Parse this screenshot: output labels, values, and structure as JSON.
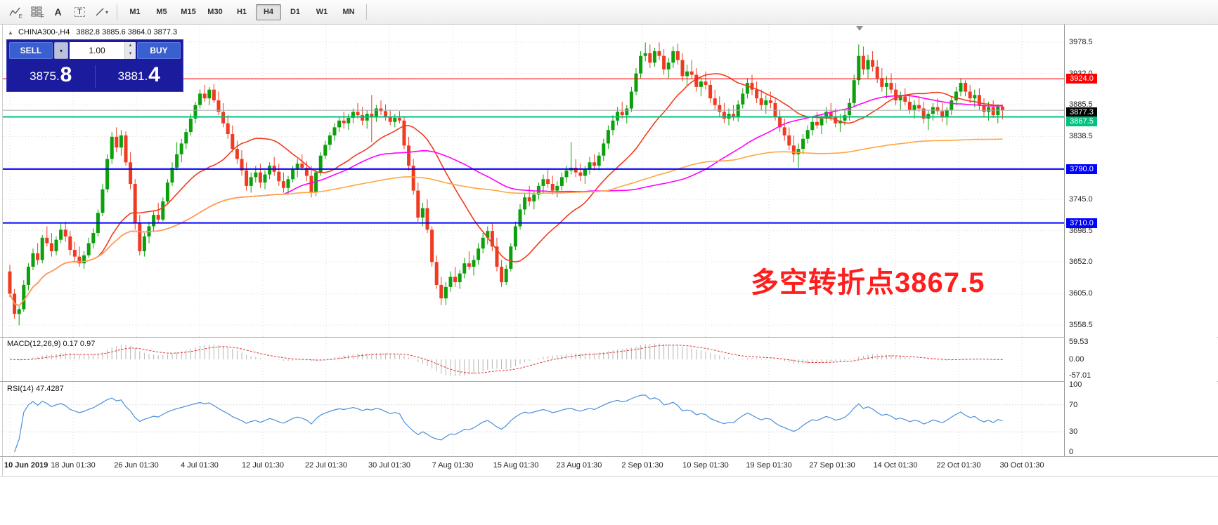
{
  "toolbar": {
    "icons": [
      {
        "name": "zigzag-tool",
        "badge": "E"
      },
      {
        "name": "grid-tool",
        "badge": "F"
      },
      {
        "name": "text-tool",
        "glyph": "A"
      },
      {
        "name": "label-tool",
        "glyph": "T"
      },
      {
        "name": "cursor-tool",
        "glyph": ""
      }
    ],
    "timeframes": [
      "M1",
      "M5",
      "M15",
      "M30",
      "H1",
      "H4",
      "D1",
      "W1",
      "MN"
    ],
    "active_timeframe": "H4"
  },
  "trade_panel": {
    "sell_label": "SELL",
    "buy_label": "BUY",
    "volume": "1.00",
    "sell_price_main": "3875.",
    "sell_price_big": "8",
    "buy_price_main": "3881.",
    "buy_price_big": "4"
  },
  "chart": {
    "symbol_header": "CHINA300-,H4",
    "ohlc_text": "3882.8 3885.6 3864.0 3877.3",
    "annotation": {
      "text": "多空转折点3867.5",
      "color": "#ff1e1e"
    },
    "axis_labels": [
      "3978.5",
      "3932.0",
      "3885.5",
      "3838.5",
      "3745.0",
      "3698.5",
      "3652.0",
      "3605.0",
      "3558.5"
    ],
    "price_lines": [
      {
        "value": 3924.0,
        "label": "3924.0",
        "color": "#ff0000",
        "width": 1.2,
        "nudge": 0
      },
      {
        "value": 3877.3,
        "label": "3877.3",
        "color": "#000000",
        "line_color": "#a8a8a8",
        "width": 1,
        "nudge": 3,
        "current": true
      },
      {
        "value": 3867.5,
        "label": "3867.5",
        "color": "#00c281",
        "width": 2,
        "nudge": 6
      },
      {
        "value": 3790.0,
        "label": "3790.0",
        "color": "#0000ff",
        "width": 2,
        "nudge": 0
      },
      {
        "value": 3710.0,
        "label": "3710.0",
        "color": "#0000ff",
        "width": 2,
        "nudge": 0
      }
    ],
    "time_labels": [
      "10 Jun 2019",
      "18 Jun 01:30",
      "26 Jun 01:30",
      "4 Jul 01:30",
      "12 Jul 01:30",
      "22 Jul 01:30",
      "30 Jul 01:30",
      "7 Aug 01:30",
      "15 Aug 01:30",
      "23 Aug 01:30",
      "2 Sep 01:30",
      "10 Sep 01:30",
      "19 Sep 01:30",
      "27 Sep 01:30",
      "14 Oct 01:30",
      "22 Oct 01:30",
      "30 Oct 01:30"
    ]
  },
  "macd": {
    "label": "MACD(12,26,9) 0.17 0.97",
    "fast": 12,
    "slow": 26,
    "signal_period": 9,
    "values": {
      "main": 0.17,
      "signal": 0.97
    },
    "axis": [
      "59.53",
      "0.00",
      "-57.01"
    ]
  },
  "rsi": {
    "label": "RSI(14) 47.4287",
    "period": 14,
    "value": 47.4287,
    "levels": [
      70,
      30
    ],
    "axis": [
      "100",
      "70",
      "30",
      "0"
    ]
  },
  "colors": {
    "candle_up": "#0ca00c",
    "candle_down": "#ee3b22",
    "grid": "#dcdcdc",
    "macd_hist": "#b4b4b4",
    "macd_signal": "#e03030",
    "rsi_line": "#4a8fdc",
    "panel_bg": "#1b1b9e",
    "panel_button": "#3a5fd0"
  },
  "chart_data": {
    "type": "candlestick",
    "symbol": "CHINA300-",
    "timeframe": "H4",
    "last_ohlc": {
      "open": 3882.8,
      "high": 3885.6,
      "low": 3864.0,
      "close": 3877.3
    },
    "y_gridlines": [
      3978.5,
      3932.0,
      3885.5,
      3838.5,
      3792.0,
      3745.0,
      3698.5,
      3652.0,
      3605.0,
      3558.5
    ],
    "x_labels": [
      "10 Jun 2019",
      "18 Jun 01:30",
      "26 Jun 01:30",
      "4 Jul 01:30",
      "12 Jul 01:30",
      "22 Jul 01:30",
      "30 Jul 01:30",
      "7 Aug 01:30",
      "15 Aug 01:30",
      "23 Aug 01:30",
      "2 Sep 01:30",
      "10 Sep 01:30",
      "19 Sep 01:30",
      "27 Sep 01:30",
      "14 Oct 01:30",
      "22 Oct 01:30",
      "30 Oct 01:30"
    ],
    "horizontal_lines": [
      {
        "value": 3924.0,
        "color": "#ff0000"
      },
      {
        "value": 3867.5,
        "color": "#00c281"
      },
      {
        "value": 3790.0,
        "color": "#0000ff"
      },
      {
        "value": 3710.0,
        "color": "#0000ff"
      }
    ],
    "current_price": 3877.3,
    "overlays": [
      {
        "name": "ma-fast",
        "period": 20,
        "color": "#f03c1e"
      },
      {
        "name": "ma-mid",
        "period": 60,
        "color": "#ff00ff"
      },
      {
        "name": "ma-slow",
        "period": 130,
        "color": "#ffa640"
      }
    ],
    "candles": [
      [
        3638,
        3648,
        3600,
        3605
      ],
      [
        3605,
        3612,
        3568,
        3575
      ],
      [
        3575,
        3586,
        3558,
        3582
      ],
      [
        3582,
        3625,
        3578,
        3618
      ],
      [
        3618,
        3650,
        3610,
        3645
      ],
      [
        3645,
        3672,
        3640,
        3665
      ],
      [
        3665,
        3680,
        3648,
        3655
      ],
      [
        3655,
        3692,
        3650,
        3688
      ],
      [
        3688,
        3705,
        3675,
        3680
      ],
      [
        3680,
        3695,
        3660,
        3668
      ],
      [
        3668,
        3690,
        3662,
        3685
      ],
      [
        3685,
        3710,
        3680,
        3700
      ],
      [
        3700,
        3712,
        3682,
        3690
      ],
      [
        3690,
        3698,
        3662,
        3670
      ],
      [
        3670,
        3682,
        3652,
        3660
      ],
      [
        3660,
        3675,
        3645,
        3650
      ],
      [
        3650,
        3668,
        3642,
        3662
      ],
      [
        3662,
        3688,
        3658,
        3680
      ],
      [
        3680,
        3702,
        3672,
        3695
      ],
      [
        3695,
        3730,
        3690,
        3725
      ],
      [
        3725,
        3768,
        3720,
        3760
      ],
      [
        3760,
        3812,
        3755,
        3805
      ],
      [
        3805,
        3845,
        3798,
        3838
      ],
      [
        3838,
        3852,
        3815,
        3822
      ],
      [
        3822,
        3848,
        3810,
        3840
      ],
      [
        3840,
        3846,
        3795,
        3800
      ],
      [
        3800,
        3815,
        3760,
        3768
      ],
      [
        3768,
        3775,
        3700,
        3710
      ],
      [
        3710,
        3722,
        3662,
        3668
      ],
      [
        3668,
        3695,
        3660,
        3690
      ],
      [
        3690,
        3712,
        3680,
        3705
      ],
      [
        3705,
        3728,
        3698,
        3722
      ],
      [
        3722,
        3740,
        3710,
        3715
      ],
      [
        3715,
        3748,
        3712,
        3742
      ],
      [
        3742,
        3775,
        3738,
        3770
      ],
      [
        3770,
        3800,
        3765,
        3792
      ],
      [
        3792,
        3830,
        3788,
        3812
      ],
      [
        3812,
        3835,
        3800,
        3828
      ],
      [
        3828,
        3850,
        3820,
        3845
      ],
      [
        3845,
        3872,
        3840,
        3865
      ],
      [
        3865,
        3890,
        3858,
        3885
      ],
      [
        3885,
        3908,
        3880,
        3902
      ],
      [
        3902,
        3915,
        3890,
        3895
      ],
      [
        3895,
        3912,
        3885,
        3908
      ],
      [
        3908,
        3916,
        3888,
        3892
      ],
      [
        3892,
        3905,
        3870,
        3875
      ],
      [
        3875,
        3888,
        3852,
        3858
      ],
      [
        3858,
        3870,
        3835,
        3842
      ],
      [
        3842,
        3855,
        3815,
        3820
      ],
      [
        3820,
        3832,
        3798,
        3805
      ],
      [
        3805,
        3818,
        3780,
        3788
      ],
      [
        3788,
        3800,
        3758,
        3765
      ],
      [
        3765,
        3785,
        3755,
        3778
      ],
      [
        3778,
        3795,
        3770,
        3785
      ],
      [
        3785,
        3798,
        3762,
        3770
      ],
      [
        3770,
        3788,
        3760,
        3782
      ],
      [
        3782,
        3800,
        3775,
        3795
      ],
      [
        3795,
        3808,
        3780,
        3786
      ],
      [
        3786,
        3798,
        3765,
        3772
      ],
      [
        3772,
        3785,
        3755,
        3762
      ],
      [
        3762,
        3780,
        3752,
        3775
      ],
      [
        3775,
        3795,
        3770,
        3790
      ],
      [
        3790,
        3805,
        3778,
        3798
      ],
      [
        3798,
        3812,
        3788,
        3792
      ],
      [
        3792,
        3802,
        3772,
        3780
      ],
      [
        3780,
        3795,
        3748,
        3755
      ],
      [
        3755,
        3790,
        3750,
        3785
      ],
      [
        3785,
        3815,
        3780,
        3810
      ],
      [
        3810,
        3832,
        3805,
        3826
      ],
      [
        3826,
        3845,
        3818,
        3840
      ],
      [
        3840,
        3858,
        3832,
        3852
      ],
      [
        3852,
        3868,
        3845,
        3862
      ],
      [
        3862,
        3875,
        3850,
        3858
      ],
      [
        3858,
        3872,
        3848,
        3866
      ],
      [
        3866,
        3880,
        3858,
        3875
      ],
      [
        3875,
        3888,
        3865,
        3870
      ],
      [
        3870,
        3882,
        3855,
        3862
      ],
      [
        3862,
        3878,
        3850,
        3872
      ],
      [
        3872,
        3900,
        3830,
        3868
      ],
      [
        3868,
        3885,
        3860,
        3880
      ],
      [
        3880,
        3892,
        3870,
        3876
      ],
      [
        3876,
        3886,
        3862,
        3868
      ],
      [
        3868,
        3878,
        3855,
        3860
      ],
      [
        3860,
        3872,
        3852,
        3866
      ],
      [
        3866,
        3876,
        3858,
        3862
      ],
      [
        3862,
        3868,
        3820,
        3825
      ],
      [
        3825,
        3838,
        3788,
        3795
      ],
      [
        3795,
        3805,
        3752,
        3758
      ],
      [
        3758,
        3770,
        3712,
        3718
      ],
      [
        3718,
        3740,
        3705,
        3732
      ],
      [
        3732,
        3745,
        3695,
        3700
      ],
      [
        3700,
        3705,
        3645,
        3652
      ],
      [
        3652,
        3662,
        3612,
        3618
      ],
      [
        3618,
        3630,
        3588,
        3598
      ],
      [
        3598,
        3622,
        3588,
        3615
      ],
      [
        3615,
        3638,
        3608,
        3630
      ],
      [
        3630,
        3645,
        3615,
        3622
      ],
      [
        3622,
        3640,
        3612,
        3635
      ],
      [
        3635,
        3658,
        3628,
        3650
      ],
      [
        3650,
        3668,
        3640,
        3645
      ],
      [
        3645,
        3662,
        3632,
        3655
      ],
      [
        3655,
        3680,
        3648,
        3672
      ],
      [
        3672,
        3695,
        3665,
        3688
      ],
      [
        3688,
        3705,
        3678,
        3698
      ],
      [
        3698,
        3710,
        3668,
        3675
      ],
      [
        3675,
        3688,
        3638,
        3645
      ],
      [
        3645,
        3655,
        3615,
        3622
      ],
      [
        3622,
        3648,
        3618,
        3642
      ],
      [
        3642,
        3680,
        3638,
        3675
      ],
      [
        3675,
        3712,
        3670,
        3705
      ],
      [
        3705,
        3738,
        3700,
        3730
      ],
      [
        3730,
        3755,
        3722,
        3748
      ],
      [
        3748,
        3765,
        3735,
        3742
      ],
      [
        3742,
        3758,
        3730,
        3752
      ],
      [
        3752,
        3770,
        3745,
        3765
      ],
      [
        3765,
        3782,
        3755,
        3775
      ],
      [
        3775,
        3790,
        3762,
        3768
      ],
      [
        3768,
        3780,
        3752,
        3758
      ],
      [
        3758,
        3772,
        3748,
        3765
      ],
      [
        3765,
        3785,
        3758,
        3778
      ],
      [
        3778,
        3795,
        3770,
        3788
      ],
      [
        3788,
        3830,
        3782,
        3792
      ],
      [
        3792,
        3805,
        3778,
        3785
      ],
      [
        3785,
        3798,
        3772,
        3780
      ],
      [
        3780,
        3795,
        3768,
        3790
      ],
      [
        3790,
        3808,
        3782,
        3800
      ],
      [
        3800,
        3812,
        3788,
        3795
      ],
      [
        3795,
        3815,
        3788,
        3810
      ],
      [
        3810,
        3835,
        3802,
        3828
      ],
      [
        3828,
        3855,
        3820,
        3848
      ],
      [
        3848,
        3870,
        3840,
        3862
      ],
      [
        3862,
        3882,
        3855,
        3875
      ],
      [
        3875,
        3890,
        3865,
        3870
      ],
      [
        3870,
        3885,
        3858,
        3880
      ],
      [
        3880,
        3912,
        3875,
        3905
      ],
      [
        3905,
        3940,
        3900,
        3932
      ],
      [
        3932,
        3965,
        3925,
        3958
      ],
      [
        3958,
        3978,
        3950,
        3962
      ],
      [
        3962,
        3975,
        3940,
        3948
      ],
      [
        3948,
        3970,
        3942,
        3965
      ],
      [
        3965,
        3978,
        3952,
        3958
      ],
      [
        3958,
        3968,
        3930,
        3938
      ],
      [
        3938,
        3955,
        3925,
        3948
      ],
      [
        3948,
        3972,
        3940,
        3965
      ],
      [
        3965,
        3976,
        3945,
        3952
      ],
      [
        3952,
        3962,
        3920,
        3928
      ],
      [
        3928,
        3945,
        3915,
        3935
      ],
      [
        3935,
        3952,
        3925,
        3930
      ],
      [
        3930,
        3940,
        3905,
        3912
      ],
      [
        3912,
        3928,
        3898,
        3920
      ],
      [
        3920,
        3935,
        3908,
        3915
      ],
      [
        3915,
        3922,
        3888,
        3895
      ],
      [
        3895,
        3908,
        3878,
        3885
      ],
      [
        3885,
        3898,
        3868,
        3875
      ],
      [
        3875,
        3888,
        3858,
        3865
      ],
      [
        3865,
        3880,
        3855,
        3872
      ],
      [
        3872,
        3885,
        3862,
        3868
      ],
      [
        3868,
        3892,
        3860,
        3886
      ],
      [
        3886,
        3910,
        3880,
        3902
      ],
      [
        3902,
        3925,
        3895,
        3918
      ],
      [
        3918,
        3930,
        3900,
        3908
      ],
      [
        3908,
        3920,
        3888,
        3895
      ],
      [
        3895,
        3908,
        3878,
        3885
      ],
      [
        3885,
        3900,
        3872,
        3892
      ],
      [
        3892,
        3905,
        3880,
        3888
      ],
      [
        3888,
        3895,
        3862,
        3868
      ],
      [
        3868,
        3878,
        3845,
        3852
      ],
      [
        3852,
        3865,
        3832,
        3840
      ],
      [
        3840,
        3852,
        3818,
        3825
      ],
      [
        3825,
        3840,
        3800,
        3812
      ],
      [
        3812,
        3828,
        3792,
        3820
      ],
      [
        3820,
        3842,
        3812,
        3835
      ],
      [
        3835,
        3855,
        3828,
        3848
      ],
      [
        3848,
        3868,
        3840,
        3860
      ],
      [
        3860,
        3875,
        3850,
        3855
      ],
      [
        3855,
        3870,
        3842,
        3865
      ],
      [
        3865,
        3882,
        3858,
        3875
      ],
      [
        3875,
        3888,
        3862,
        3868
      ],
      [
        3868,
        3880,
        3852,
        3858
      ],
      [
        3858,
        3872,
        3845,
        3862
      ],
      [
        3862,
        3878,
        3855,
        3870
      ],
      [
        3870,
        3895,
        3862,
        3888
      ],
      [
        3888,
        3930,
        3882,
        3922
      ],
      [
        3922,
        3975,
        3915,
        3958
      ],
      [
        3958,
        3972,
        3930,
        3938
      ],
      [
        3938,
        3960,
        3925,
        3952
      ],
      [
        3952,
        3965,
        3935,
        3942
      ],
      [
        3942,
        3952,
        3918,
        3925
      ],
      [
        3925,
        3940,
        3905,
        3912
      ],
      [
        3912,
        3928,
        3895,
        3918
      ],
      [
        3918,
        3932,
        3902,
        3908
      ],
      [
        3908,
        3918,
        3885,
        3892
      ],
      [
        3892,
        3905,
        3878,
        3898
      ],
      [
        3898,
        3910,
        3885,
        3890
      ],
      [
        3890,
        3902,
        3872,
        3878
      ],
      [
        3878,
        3892,
        3865,
        3885
      ],
      [
        3885,
        3898,
        3875,
        3880
      ],
      [
        3880,
        3890,
        3858,
        3865
      ],
      [
        3865,
        3878,
        3848,
        3872
      ],
      [
        3872,
        3888,
        3862,
        3882
      ],
      [
        3882,
        3895,
        3870,
        3876
      ],
      [
        3876,
        3888,
        3860,
        3868
      ],
      [
        3868,
        3882,
        3855,
        3878
      ],
      [
        3878,
        3898,
        3870,
        3892
      ],
      [
        3892,
        3912,
        3885,
        3905
      ],
      [
        3905,
        3925,
        3898,
        3918
      ],
      [
        3918,
        3922,
        3898,
        3905
      ],
      [
        3905,
        3915,
        3888,
        3895
      ],
      [
        3895,
        3908,
        3882,
        3900
      ],
      [
        3900,
        3910,
        3878,
        3885
      ],
      [
        3885,
        3895,
        3868,
        3875
      ],
      [
        3875,
        3890,
        3862,
        3882
      ],
      [
        3882,
        3892,
        3866,
        3870
      ],
      [
        3870,
        3886,
        3858,
        3882.8
      ],
      [
        3882.8,
        3885.6,
        3864,
        3877.3
      ]
    ]
  }
}
